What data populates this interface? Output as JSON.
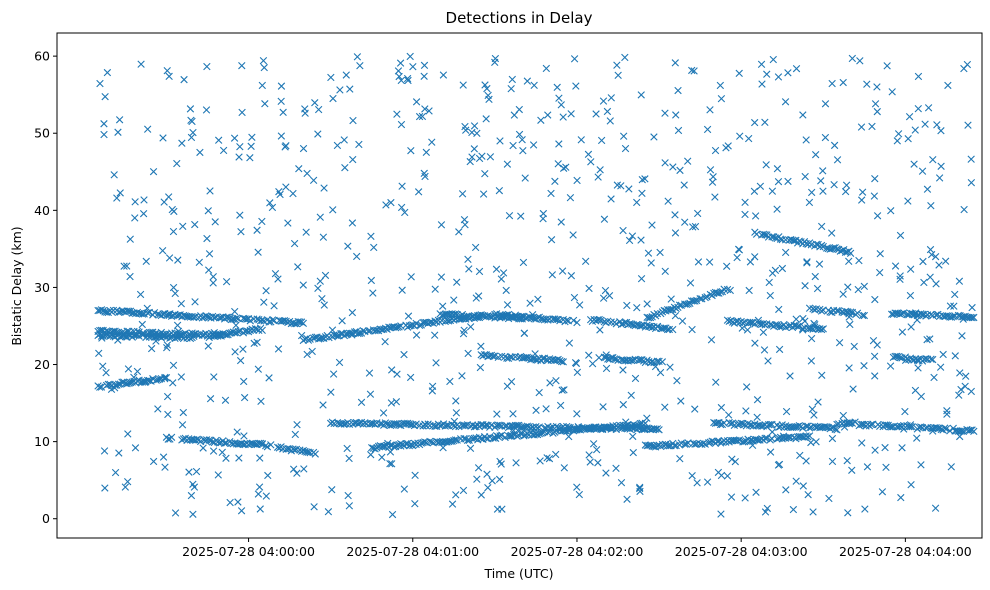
{
  "chart_data": {
    "type": "scatter",
    "title": "Detections in Delay",
    "xlabel": "Time (UTC)",
    "ylabel": "Bistatic Delay (km)",
    "marker": "x",
    "color": "#1f77b4",
    "grid": false,
    "legend": "none",
    "x_axis": {
      "type": "time",
      "min": "2025-07-28 03:58:50",
      "max": "2025-07-28 04:04:28",
      "ticks": [
        {
          "value": "2025-07-28 04:00:00",
          "label": "2025-07-28 04:00:00"
        },
        {
          "value": "2025-07-28 04:01:00",
          "label": "2025-07-28 04:01:00"
        },
        {
          "value": "2025-07-28 04:02:00",
          "label": "2025-07-28 04:02:00"
        },
        {
          "value": "2025-07-28 04:03:00",
          "label": "2025-07-28 04:03:00"
        },
        {
          "value": "2025-07-28 04:04:00",
          "label": "2025-07-28 04:04:00"
        }
      ]
    },
    "y_axis": {
      "min": -2.5,
      "max": 63,
      "ticks": [
        0,
        10,
        20,
        30,
        40,
        50,
        60
      ]
    },
    "tracks": [
      {
        "start": "2025-07-28 03:59:05",
        "end": "2025-07-28 03:59:30",
        "y_start": 17.2,
        "y_end": 18.2
      },
      {
        "start": "2025-07-28 03:59:05",
        "end": "2025-07-28 03:59:40",
        "y_start": 23.8,
        "y_end": 23.5
      },
      {
        "start": "2025-07-28 03:59:05",
        "end": "2025-07-28 04:00:20",
        "y_start": 27.0,
        "y_end": 25.4
      },
      {
        "start": "2025-07-28 03:59:05",
        "end": "2025-07-28 03:59:50",
        "y_start": 24.3,
        "y_end": 23.8
      },
      {
        "start": "2025-07-28 03:59:45",
        "end": "2025-07-28 04:00:05",
        "y_start": 23.6,
        "y_end": 24.6
      },
      {
        "start": "2025-07-28 03:59:30",
        "end": "2025-07-28 04:00:05",
        "y_start": 10.5,
        "y_end": 9.6
      },
      {
        "start": "2025-07-28 04:00:05",
        "end": "2025-07-28 04:00:25",
        "y_start": 9.6,
        "y_end": 8.4
      },
      {
        "start": "2025-07-28 04:00:30",
        "end": "2025-07-28 04:02:30",
        "y_start": 12.4,
        "y_end": 11.6
      },
      {
        "start": "2025-07-28 04:00:45",
        "end": "2025-07-28 04:02:25",
        "y_start": 9.2,
        "y_end": 12.3
      },
      {
        "start": "2025-07-28 04:00:20",
        "end": "2025-07-28 04:01:25",
        "y_start": 23.2,
        "y_end": 26.3
      },
      {
        "start": "2025-07-28 04:01:10",
        "end": "2025-07-28 04:01:40",
        "y_start": 26.5,
        "y_end": 26.0
      },
      {
        "start": "2025-07-28 04:01:25",
        "end": "2025-07-28 04:01:55",
        "y_start": 21.2,
        "y_end": 20.5
      },
      {
        "start": "2025-07-28 04:01:30",
        "end": "2025-07-28 04:02:00",
        "y_start": 26.5,
        "y_end": 25.6
      },
      {
        "start": "2025-07-28 04:02:05",
        "end": "2025-07-28 04:02:35",
        "y_start": 25.8,
        "y_end": 24.6
      },
      {
        "start": "2025-07-28 04:02:10",
        "end": "2025-07-28 04:02:30",
        "y_start": 20.8,
        "y_end": 20.3
      },
      {
        "start": "2025-07-28 04:02:25",
        "end": "2025-07-28 04:02:55",
        "y_start": 26.0,
        "y_end": 29.8
      },
      {
        "start": "2025-07-28 04:02:25",
        "end": "2025-07-28 04:03:25",
        "y_start": 9.4,
        "y_end": 10.6
      },
      {
        "start": "2025-07-28 04:02:50",
        "end": "2025-07-28 04:03:35",
        "y_start": 12.4,
        "y_end": 11.7
      },
      {
        "start": "2025-07-28 04:03:05",
        "end": "2025-07-28 04:03:40",
        "y_start": 37.0,
        "y_end": 34.6
      },
      {
        "start": "2025-07-28 04:02:55",
        "end": "2025-07-28 04:03:30",
        "y_start": 25.6,
        "y_end": 24.6
      },
      {
        "start": "2025-07-28 04:03:25",
        "end": "2025-07-28 04:03:45",
        "y_start": 27.2,
        "y_end": 26.5
      },
      {
        "start": "2025-07-28 04:03:35",
        "end": "2025-07-28 04:04:25",
        "y_start": 12.4,
        "y_end": 11.4
      },
      {
        "start": "2025-07-28 04:03:55",
        "end": "2025-07-28 04:04:25",
        "y_start": 26.6,
        "y_end": 26.2
      },
      {
        "start": "2025-07-28 04:03:55",
        "end": "2025-07-28 04:04:10",
        "y_start": 21.0,
        "y_end": 20.5
      }
    ],
    "clutter": {
      "count": 850,
      "x_range": [
        "2025-07-28 03:59:05",
        "2025-07-28 04:04:25"
      ],
      "y_range": [
        0.5,
        60
      ]
    }
  }
}
